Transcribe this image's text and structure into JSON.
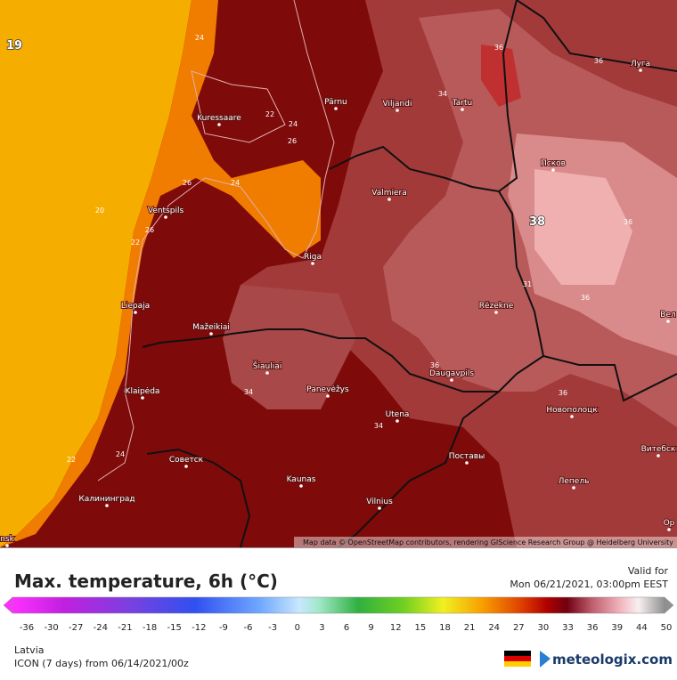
{
  "map": {
    "cities": [
      "Pärnu",
      "Viljandi",
      "Tartu",
      "Kuressaare",
      "Valmiera",
      "Ventspils",
      "Riga",
      "Liepaja",
      "Mažeikiai",
      "Šiauliai",
      "Panevėžys",
      "Rēzekne",
      "Daugavpils",
      "Utena",
      "Klaipėda",
      "Советск",
      "Kaunas",
      "Vilnius",
      "Калининград",
      "Поставы",
      "Новополоцк",
      "Псков",
      "Луга",
      "Лепель",
      "Витебск",
      "Вел",
      "Ор",
      "nsk"
    ],
    "contour_labels": [
      19,
      38,
      24,
      22,
      24,
      26,
      24,
      26,
      20,
      22,
      26,
      34,
      36,
      36,
      36,
      36,
      36,
      34,
      34,
      22,
      24,
      31,
      36
    ],
    "attribution": "Map data © OpenStreetMap contributors, rendering GIScience Research Group @ Heidelberg University"
  },
  "panel": {
    "title": "Max. temperature, 6h (°C)",
    "valid_label": "Valid for",
    "valid_time": "Mon 06/21/2021, 03:00pm EEST",
    "legend_ticks": [
      -36,
      -30,
      -27,
      -24,
      -21,
      -18,
      -15,
      -12,
      -9,
      -6,
      -3,
      0,
      3,
      6,
      9,
      12,
      15,
      18,
      21,
      24,
      27,
      30,
      33,
      36,
      39,
      44,
      50
    ],
    "region": "Latvia",
    "model": "ICON (7 days)  from  06/14/2021/00z",
    "brand": "meteologix.com"
  }
}
